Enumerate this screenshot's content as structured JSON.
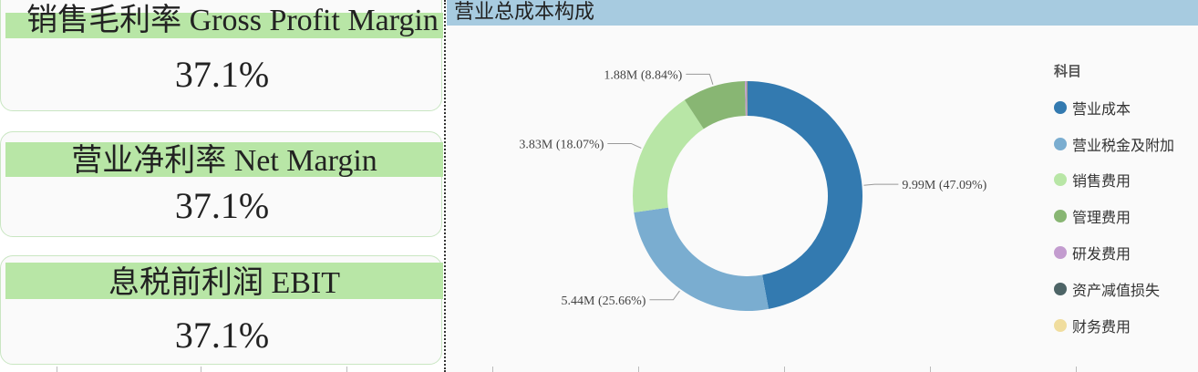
{
  "kpis": [
    {
      "label": "销售毛利率 Gross Profit Margin",
      "value": "37.1%"
    },
    {
      "label": "营业净利率 Net Margin",
      "value": "37.1%"
    },
    {
      "label": "息税前利润 EBIT",
      "value": "37.1%"
    }
  ],
  "colors": {
    "kpi_band": "#b8e6a6",
    "header": "#a7cbe0"
  },
  "chart_data": {
    "type": "pie",
    "variant": "donut",
    "title": "营业总成本构成",
    "legend_title": "科目",
    "legend_position": "right",
    "slices": [
      {
        "name": "营业成本",
        "value": 9.99,
        "label": "9.99M (47.09%)",
        "percent": 47.09,
        "color": "#337ab0"
      },
      {
        "name": "营业税金及附加",
        "value": 5.44,
        "label": "5.44M (25.66%)",
        "percent": 25.66,
        "color": "#7aadd0"
      },
      {
        "name": "销售费用",
        "value": 3.83,
        "label": "3.83M (18.07%)",
        "percent": 18.07,
        "color": "#b8e6a6"
      },
      {
        "name": "管理费用",
        "value": 1.88,
        "label": "1.88M (8.84%)",
        "percent": 8.84,
        "color": "#88b673"
      },
      {
        "name": "研发费用",
        "value": 0.05,
        "label": "",
        "percent": 0.24,
        "color": "#c39ccf"
      },
      {
        "name": "资产减值损失",
        "value": 0.02,
        "label": "",
        "percent": 0.06,
        "color": "#4d6466"
      },
      {
        "name": "财务费用",
        "value": 0.01,
        "label": "",
        "percent": 0.04,
        "color": "#f0dd9e"
      }
    ]
  }
}
